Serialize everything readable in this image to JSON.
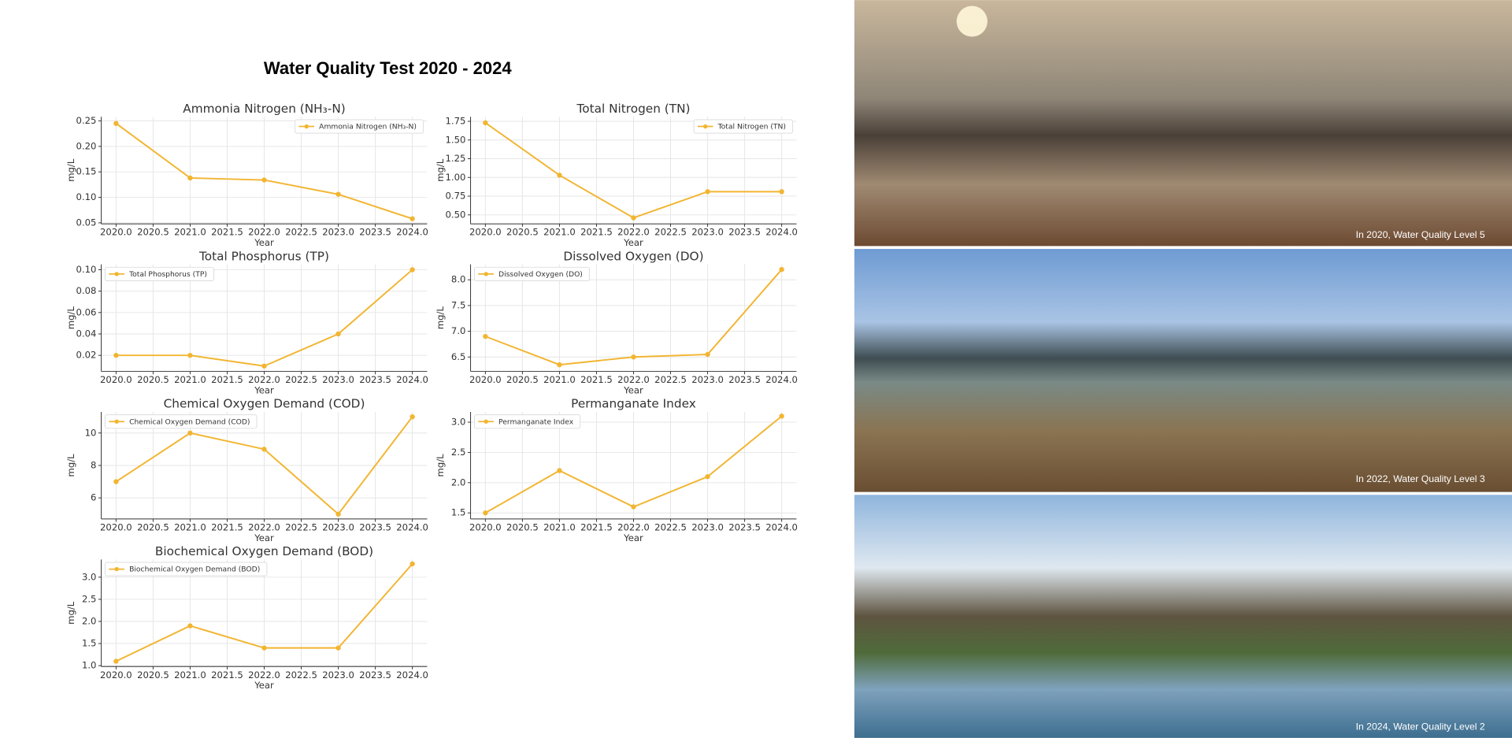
{
  "title": "Water Quality Test 2020 - 2024",
  "photo_captions": [
    "In 2020, Water Quality Level 5",
    "In 2022, Water Quality Level 3",
    "In 2024, Water Quality Level 2"
  ],
  "chart_data": [
    {
      "type": "line",
      "title": "Ammonia Nitrogen (NH₃-N)",
      "xlabel": "Year",
      "ylabel": "mg/L",
      "legend": "upper right",
      "grid": true,
      "x": [
        2020,
        2021,
        2022,
        2023,
        2024
      ],
      "series": [
        {
          "name": "Ammonia Nitrogen (NH₃-N)",
          "color": "#f2b531",
          "values": [
            0.245,
            0.138,
            0.134,
            0.106,
            0.058
          ]
        }
      ],
      "xlim": [
        2019.8,
        2024.2
      ],
      "ylim": [
        0.048,
        0.258
      ],
      "xticks": [
        {
          "value": 2020,
          "label": "2020.0"
        },
        2020.5,
        {
          "value": 2021,
          "label": "2021.0"
        },
        2021.5,
        {
          "value": 2022,
          "label": "2022.0"
        },
        2022.5,
        {
          "value": 2023,
          "label": "2023.0"
        },
        2023.5,
        {
          "value": 2024,
          "label": "2024.0"
        }
      ],
      "yticks": [
        0.05,
        {
          "value": 0.1,
          "label": "0.10"
        },
        0.15,
        {
          "value": 0.2,
          "label": "0.20"
        },
        0.25
      ]
    },
    {
      "type": "line",
      "title": "Total Nitrogen (TN)",
      "xlabel": "Year",
      "ylabel": "mg/L",
      "legend": "upper right",
      "grid": true,
      "x": [
        2020,
        2021,
        2022,
        2023,
        2024
      ],
      "series": [
        {
          "name": "Total Nitrogen (TN)",
          "color": "#f2b531",
          "values": [
            1.73,
            1.03,
            0.46,
            0.81,
            0.81
          ]
        }
      ],
      "xlim": [
        2019.8,
        2024.2
      ],
      "ylim": [
        0.38,
        1.81
      ],
      "xticks": [
        {
          "value": 2020,
          "label": "2020.0"
        },
        2020.5,
        {
          "value": 2021,
          "label": "2021.0"
        },
        2021.5,
        {
          "value": 2022,
          "label": "2022.0"
        },
        2022.5,
        {
          "value": 2023,
          "label": "2023.0"
        },
        2023.5,
        {
          "value": 2024,
          "label": "2024.0"
        }
      ],
      "yticks": [
        {
          "value": 0.5,
          "label": "0.50"
        },
        0.75,
        {
          "value": 1,
          "label": "1.00"
        },
        1.25,
        {
          "value": 1.5,
          "label": "1.50"
        },
        1.75
      ]
    },
    {
      "type": "line",
      "title": "Total Phosphorus (TP)",
      "xlabel": "Year",
      "ylabel": "mg/L",
      "legend": "upper left",
      "grid": true,
      "x": [
        2020,
        2021,
        2022,
        2023,
        2024
      ],
      "series": [
        {
          "name": "Total Phosphorus (TP)",
          "color": "#f2b531",
          "values": [
            0.02,
            0.02,
            0.01,
            0.04,
            0.1
          ]
        }
      ],
      "xlim": [
        2019.8,
        2024.2
      ],
      "ylim": [
        0.005,
        0.105
      ],
      "xticks": [
        {
          "value": 2020,
          "label": "2020.0"
        },
        2020.5,
        {
          "value": 2021,
          "label": "2021.0"
        },
        2021.5,
        {
          "value": 2022,
          "label": "2022.0"
        },
        2022.5,
        {
          "value": 2023,
          "label": "2023.0"
        },
        2023.5,
        {
          "value": 2024,
          "label": "2024.0"
        }
      ],
      "yticks": [
        0.02,
        0.04,
        0.06,
        0.08,
        {
          "value": 0.1,
          "label": "0.10"
        }
      ]
    },
    {
      "type": "line",
      "title": "Dissolved Oxygen (DO)",
      "xlabel": "Year",
      "ylabel": "mg/L",
      "legend": "upper left",
      "grid": true,
      "x": [
        2020,
        2021,
        2022,
        2023,
        2024
      ],
      "series": [
        {
          "name": "Dissolved Oxygen (DO)",
          "color": "#f2b531",
          "values": [
            6.9,
            6.35,
            6.5,
            6.55,
            8.2
          ]
        }
      ],
      "xlim": [
        2019.8,
        2024.2
      ],
      "ylim": [
        6.22,
        8.3
      ],
      "xticks": [
        {
          "value": 2020,
          "label": "2020.0"
        },
        2020.5,
        {
          "value": 2021,
          "label": "2021.0"
        },
        2021.5,
        {
          "value": 2022,
          "label": "2022.0"
        },
        2022.5,
        {
          "value": 2023,
          "label": "2023.0"
        },
        2023.5,
        {
          "value": 2024,
          "label": "2024.0"
        }
      ],
      "yticks": [
        6.5,
        {
          "value": 7,
          "label": "7.0"
        },
        7.5,
        {
          "value": 8,
          "label": "8.0"
        }
      ]
    },
    {
      "type": "line",
      "title": "Chemical Oxygen Demand (COD)",
      "xlabel": "Year",
      "ylabel": "mg/L",
      "legend": "upper left",
      "grid": true,
      "x": [
        2020,
        2021,
        2022,
        2023,
        2024
      ],
      "series": [
        {
          "name": "Chemical Oxygen Demand (COD)",
          "color": "#f2b531",
          "values": [
            7,
            10,
            9,
            5,
            11
          ]
        }
      ],
      "xlim": [
        2019.8,
        2024.2
      ],
      "ylim": [
        4.7,
        11.3
      ],
      "xticks": [
        {
          "value": 2020,
          "label": "2020.0"
        },
        2020.5,
        {
          "value": 2021,
          "label": "2021.0"
        },
        2021.5,
        {
          "value": 2022,
          "label": "2022.0"
        },
        2022.5,
        {
          "value": 2023,
          "label": "2023.0"
        },
        2023.5,
        {
          "value": 2024,
          "label": "2024.0"
        }
      ],
      "yticks": [
        6,
        8,
        10
      ]
    },
    {
      "type": "line",
      "title": "Permanganate Index",
      "xlabel": "Year",
      "ylabel": "mg/L",
      "legend": "upper left",
      "grid": true,
      "x": [
        2020,
        2021,
        2022,
        2023,
        2024
      ],
      "series": [
        {
          "name": "Permanganate Index",
          "color": "#f2b531",
          "values": [
            1.5,
            2.2,
            1.6,
            2.1,
            3.1
          ]
        }
      ],
      "xlim": [
        2019.8,
        2024.2
      ],
      "ylim": [
        1.4,
        3.17
      ],
      "xticks": [
        {
          "value": 2020,
          "label": "2020.0"
        },
        2020.5,
        {
          "value": 2021,
          "label": "2021.0"
        },
        2021.5,
        {
          "value": 2022,
          "label": "2022.0"
        },
        2022.5,
        {
          "value": 2023,
          "label": "2023.0"
        },
        2023.5,
        {
          "value": 2024,
          "label": "2024.0"
        }
      ],
      "yticks": [
        1.5,
        {
          "value": 2,
          "label": "2.0"
        },
        2.5,
        {
          "value": 3,
          "label": "3.0"
        }
      ]
    },
    {
      "type": "line",
      "title": "Biochemical Oxygen Demand (BOD)",
      "xlabel": "Year",
      "ylabel": "mg/L",
      "legend": "upper left",
      "grid": true,
      "x": [
        2020,
        2021,
        2022,
        2023,
        2024
      ],
      "series": [
        {
          "name": "Biochemical Oxygen Demand (BOD)",
          "color": "#f2b531",
          "values": [
            1.1,
            1.9,
            1.4,
            1.4,
            3.3
          ]
        }
      ],
      "xlim": [
        2019.8,
        2024.2
      ],
      "ylim": [
        0.98,
        3.4
      ],
      "xticks": [
        {
          "value": 2020,
          "label": "2020.0"
        },
        2020.5,
        {
          "value": 2021,
          "label": "2021.0"
        },
        2021.5,
        {
          "value": 2022,
          "label": "2022.0"
        },
        2022.5,
        {
          "value": 2023,
          "label": "2023.0"
        },
        2023.5,
        {
          "value": 2024,
          "label": "2024.0"
        }
      ],
      "yticks": [
        {
          "value": 1,
          "label": "1.0"
        },
        1.5,
        {
          "value": 2,
          "label": "2.0"
        },
        2.5,
        {
          "value": 3,
          "label": "3.0"
        }
      ]
    }
  ]
}
